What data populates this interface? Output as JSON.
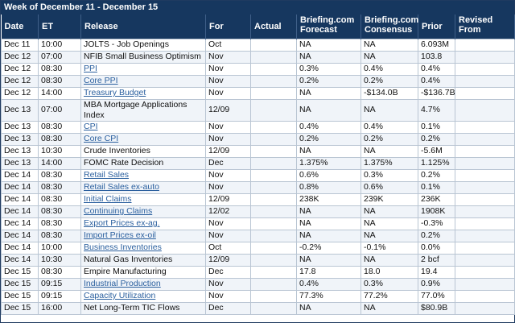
{
  "title": "Week of December 11 - December 15",
  "columns": [
    "Date",
    "ET",
    "Release",
    "For",
    "Actual",
    "Briefing.com Forecast",
    "Briefing.com Consensus",
    "Prior",
    "Revised From"
  ],
  "rows": [
    {
      "date": "Dec 11",
      "et": "10:00",
      "release": "JOLTS - Job Openings",
      "link": false,
      "for": "Oct",
      "actual": "",
      "forecast": "NA",
      "consensus": "NA",
      "prior": "6.093M",
      "revised": ""
    },
    {
      "date": "Dec 12",
      "et": "07:00",
      "release": "NFIB Small Business Optimism",
      "link": false,
      "for": "Nov",
      "actual": "",
      "forecast": "NA",
      "consensus": "NA",
      "prior": "103.8",
      "revised": ""
    },
    {
      "date": "Dec 12",
      "et": "08:30",
      "release": "PPI",
      "link": true,
      "for": "Nov",
      "actual": "",
      "forecast": "0.3%",
      "consensus": "0.4%",
      "prior": "0.4%",
      "revised": ""
    },
    {
      "date": "Dec 12",
      "et": "08:30",
      "release": "Core PPI",
      "link": true,
      "for": "Nov",
      "actual": "",
      "forecast": "0.2%",
      "consensus": "0.2%",
      "prior": "0.4%",
      "revised": ""
    },
    {
      "date": "Dec 12",
      "et": "14:00",
      "release": "Treasury Budget",
      "link": true,
      "for": "Nov",
      "actual": "",
      "forecast": "NA",
      "consensus": "-$134.0B",
      "prior": "-$136.7B",
      "revised": ""
    },
    {
      "date": "Dec 13",
      "et": "07:00",
      "release": "MBA Mortgage Applications Index",
      "link": false,
      "for": "12/09",
      "actual": "",
      "forecast": "NA",
      "consensus": "NA",
      "prior": "4.7%",
      "revised": "",
      "tall": true
    },
    {
      "date": "Dec 13",
      "et": "08:30",
      "release": "CPI",
      "link": true,
      "for": "Nov",
      "actual": "",
      "forecast": "0.4%",
      "consensus": "0.4%",
      "prior": "0.1%",
      "revised": ""
    },
    {
      "date": "Dec 13",
      "et": "08:30",
      "release": "Core CPI",
      "link": true,
      "for": "Nov",
      "actual": "",
      "forecast": "0.2%",
      "consensus": "0.2%",
      "prior": "0.2%",
      "revised": ""
    },
    {
      "date": "Dec 13",
      "et": "10:30",
      "release": "Crude Inventories",
      "link": false,
      "for": "12/09",
      "actual": "",
      "forecast": "NA",
      "consensus": "NA",
      "prior": "-5.6M",
      "revised": ""
    },
    {
      "date": "Dec 13",
      "et": "14:00",
      "release": "FOMC Rate Decision",
      "link": false,
      "for": "Dec",
      "actual": "",
      "forecast": "1.375%",
      "consensus": "1.375%",
      "prior": "1.125%",
      "revised": ""
    },
    {
      "date": "Dec 14",
      "et": "08:30",
      "release": "Retail Sales",
      "link": true,
      "for": "Nov",
      "actual": "",
      "forecast": "0.6%",
      "consensus": "0.3%",
      "prior": "0.2%",
      "revised": ""
    },
    {
      "date": "Dec 14",
      "et": "08:30",
      "release": "Retail Sales ex-auto",
      "link": true,
      "for": "Nov",
      "actual": "",
      "forecast": "0.8%",
      "consensus": "0.6%",
      "prior": "0.1%",
      "revised": ""
    },
    {
      "date": "Dec 14",
      "et": "08:30",
      "release": "Initial Claims",
      "link": true,
      "for": "12/09",
      "actual": "",
      "forecast": "238K",
      "consensus": "239K",
      "prior": "236K",
      "revised": ""
    },
    {
      "date": "Dec 14",
      "et": "08:30",
      "release": "Continuing Claims",
      "link": true,
      "for": "12/02",
      "actual": "",
      "forecast": "NA",
      "consensus": "NA",
      "prior": "1908K",
      "revised": ""
    },
    {
      "date": "Dec 14",
      "et": "08:30",
      "release": "Export Prices ex-ag.",
      "link": true,
      "for": "Nov",
      "actual": "",
      "forecast": "NA",
      "consensus": "NA",
      "prior": "-0.3%",
      "revised": ""
    },
    {
      "date": "Dec 14",
      "et": "08:30",
      "release": "Import Prices ex-oil",
      "link": true,
      "for": "Nov",
      "actual": "",
      "forecast": "NA",
      "consensus": "NA",
      "prior": "0.2%",
      "revised": ""
    },
    {
      "date": "Dec 14",
      "et": "10:00",
      "release": "Business Inventories",
      "link": true,
      "for": "Oct",
      "actual": "",
      "forecast": "-0.2%",
      "consensus": "-0.1%",
      "prior": "0.0%",
      "revised": ""
    },
    {
      "date": "Dec 14",
      "et": "10:30",
      "release": "Natural Gas Inventories",
      "link": false,
      "for": "12/09",
      "actual": "",
      "forecast": "NA",
      "consensus": "NA",
      "prior": "2 bcf",
      "revised": ""
    },
    {
      "date": "Dec 15",
      "et": "08:30",
      "release": "Empire Manufacturing",
      "link": false,
      "for": "Dec",
      "actual": "",
      "forecast": "17.8",
      "consensus": "18.0",
      "prior": "19.4",
      "revised": ""
    },
    {
      "date": "Dec 15",
      "et": "09:15",
      "release": "Industrial Production",
      "link": true,
      "for": "Nov",
      "actual": "",
      "forecast": "0.4%",
      "consensus": "0.3%",
      "prior": "0.9%",
      "revised": ""
    },
    {
      "date": "Dec 15",
      "et": "09:15",
      "release": "Capacity Utilization",
      "link": true,
      "for": "Nov",
      "actual": "",
      "forecast": "77.3%",
      "consensus": "77.2%",
      "prior": "77.0%",
      "revised": ""
    },
    {
      "date": "Dec 15",
      "et": "16:00",
      "release": "Net Long-Term TIC Flows",
      "link": false,
      "for": "Dec",
      "actual": "",
      "forecast": "NA",
      "consensus": "NA",
      "prior": "$80.9B",
      "revised": ""
    }
  ],
  "colors": {
    "header_bg": "#16375f",
    "link": "#2a5f9e",
    "row_alt": "#f0f4f9",
    "border": "#b9c5d3"
  }
}
